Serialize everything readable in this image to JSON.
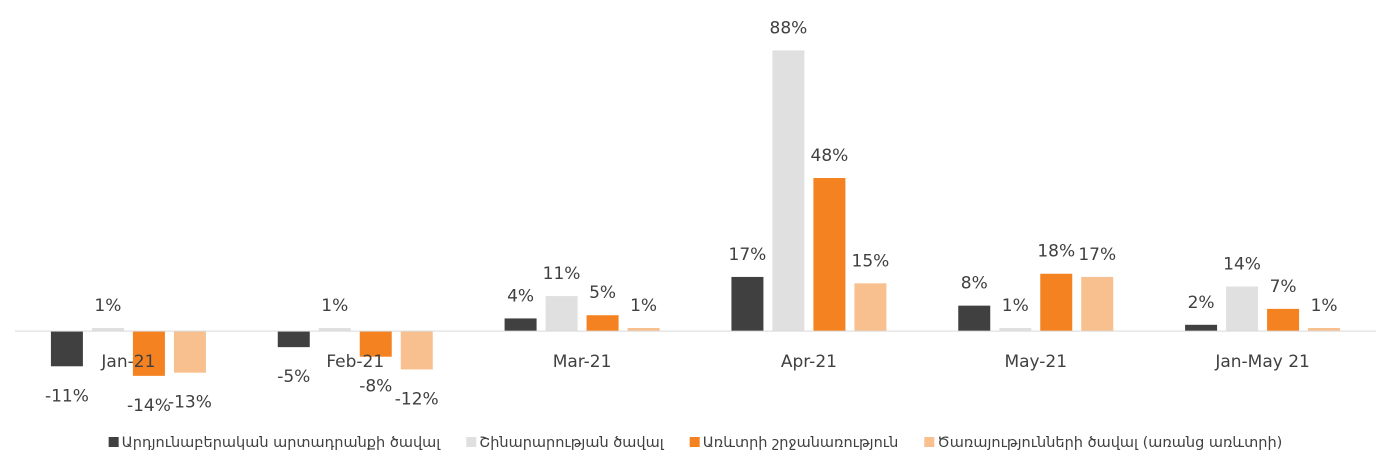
{
  "chart_data": {
    "type": "bar",
    "categories": [
      "Jan-21",
      "Feb-21",
      "Mar-21",
      "Apr-21",
      "May-21",
      "Jan-May 21"
    ],
    "ylim": [
      -20,
      90
    ],
    "legend": "bottom",
    "series": [
      {
        "name": "Արդյունաբերական արտադրանքի ծավալ",
        "color": "#404040",
        "values": [
          -11,
          -5,
          4,
          17,
          8,
          2
        ],
        "value_labels": [
          "-11%",
          "-5%",
          "4%",
          "17%",
          "8%",
          "2%"
        ]
      },
      {
        "name": "Շինարարության ծավալ",
        "color": "#e0e0e0",
        "values": [
          1,
          1,
          11,
          88,
          1,
          14
        ],
        "value_labels": [
          "1%",
          "1%",
          "11%",
          "88%",
          "1%",
          "14%"
        ]
      },
      {
        "name": "Առևտրի շրջանառություն",
        "color": "#f58220",
        "values": [
          -14,
          -8,
          5,
          48,
          18,
          7
        ],
        "value_labels": [
          "-14%",
          "-8%",
          "5%",
          "48%",
          "18%",
          "7%"
        ]
      },
      {
        "name": "Ծառայությունների ծավալ (առանց առևտրի)",
        "color": "#f8c08f",
        "values": [
          -13,
          -12,
          1,
          15,
          17,
          1
        ],
        "value_labels": [
          "-13%",
          "-12%",
          "1%",
          "15%",
          "17%",
          "1%"
        ]
      }
    ]
  }
}
